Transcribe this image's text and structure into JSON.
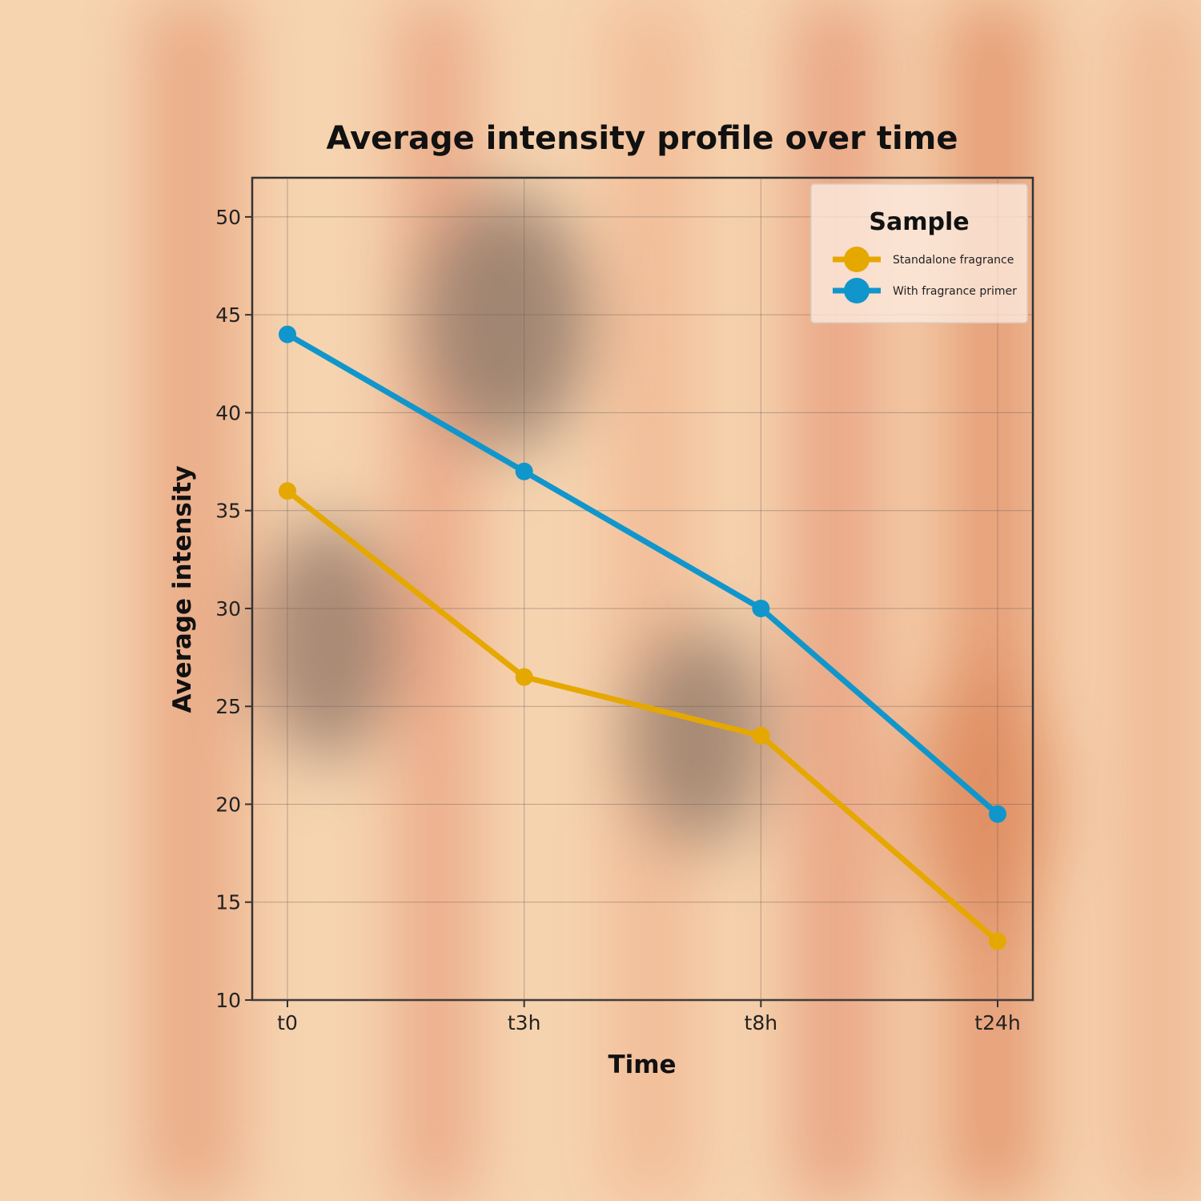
{
  "chart_data": {
    "type": "line",
    "title": "Average intensity profile over time",
    "xlabel": "Time",
    "ylabel": "Average intensity",
    "categories": [
      "t0",
      "t3h",
      "t8h",
      "t24h"
    ],
    "ylim": [
      10,
      52
    ],
    "yticks": [
      10,
      15,
      20,
      25,
      30,
      35,
      40,
      45,
      50
    ],
    "grid": true,
    "legend": {
      "title": "Sample",
      "position": "top-right"
    },
    "series": [
      {
        "name": "Standalone fragrance",
        "color": "#e5a800",
        "values": [
          36,
          26.5,
          23.5,
          13
        ]
      },
      {
        "name": "With fragrance primer",
        "color": "#1196cc",
        "values": [
          44,
          37,
          30,
          19.5
        ]
      }
    ]
  }
}
